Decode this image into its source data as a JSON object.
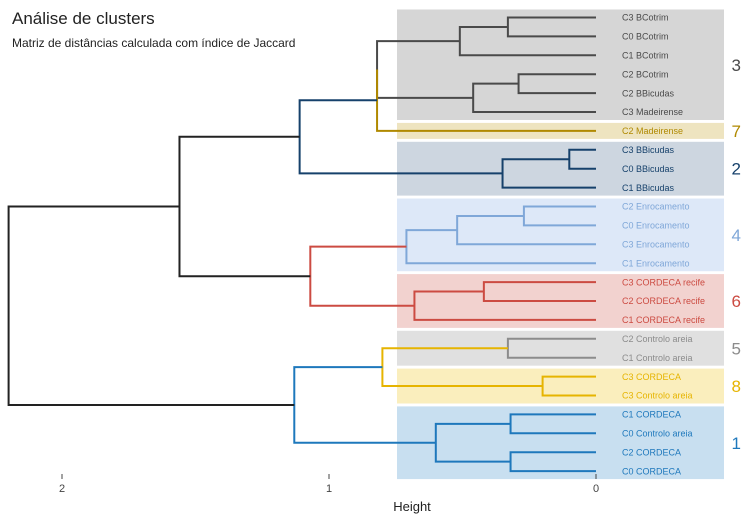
{
  "chart_data": {
    "type": "dendrogram",
    "title": "Análise de clusters",
    "subtitle": "Matriz de distâncias calculada com índice de Jaccard",
    "xlabel": "Height",
    "x_ticks": [
      {
        "value": 2,
        "label": "2"
      },
      {
        "value": 1,
        "label": "1"
      },
      {
        "value": 0,
        "label": "0"
      }
    ],
    "xlim": [
      2.22,
      -0.49
    ],
    "leaves": [
      "C3 BCotrim",
      "C0 BCotrim",
      "C1 BCotrim",
      "C2 BCotrim",
      "C2 BBicudas",
      "C3 Madeirense",
      "C2 Madeirense",
      "C3 BBicudas",
      "C0 BBicudas",
      "C1 BBicudas",
      "C2 Enrocamento",
      "C0 Enrocamento",
      "C3 Enrocamento",
      "C1 Enrocamento",
      "C3 CORDECA recife",
      "C2 CORDECA recife",
      "C1 CORDECA recife",
      "C2 Controlo areia",
      "C1 Controlo areia",
      "C3 CORDECA",
      "C3 Controlo areia",
      "C1 CORDECA",
      "C0 Controlo areia",
      "C2 CORDECA",
      "C0 CORDECA"
    ],
    "clusters": [
      {
        "label": "3",
        "color": "#4a4a4a",
        "bg": "#d6d6d6",
        "first": 0,
        "last": 5
      },
      {
        "label": "7",
        "color": "#b08900",
        "bg": "#eee4c0",
        "first": 6,
        "last": 6
      },
      {
        "label": "2",
        "color": "#16416b",
        "bg": "#cdd6e0",
        "first": 7,
        "last": 9
      },
      {
        "label": "4",
        "color": "#7fa7d8",
        "bg": "#dde8f8",
        "first": 10,
        "last": 13
      },
      {
        "label": "6",
        "color": "#cc4b42",
        "bg": "#f2d2cf",
        "first": 14,
        "last": 16
      },
      {
        "label": "5",
        "color": "#8c8c8c",
        "bg": "#e0e0e0",
        "first": 17,
        "last": 18
      },
      {
        "label": "8",
        "color": "#e6b400",
        "bg": "#faeebd",
        "first": 19,
        "last": 20
      },
      {
        "label": "1",
        "color": "#1e78bc",
        "bg": "#c8dff0",
        "first": 21,
        "last": 24
      }
    ],
    "merges": [
      {
        "a": 0,
        "b": 1,
        "height": 0.33,
        "color": "#4a4a4a"
      },
      {
        "a": "m0",
        "b": 2,
        "height": 0.51,
        "color": "#4a4a4a"
      },
      {
        "a": 3,
        "b": 4,
        "height": 0.29,
        "color": "#4a4a4a"
      },
      {
        "a": "m2",
        "b": 5,
        "height": 0.46,
        "color": "#4a4a4a"
      },
      {
        "a": "m1",
        "b": "m3",
        "height": 0.82,
        "color": "#4a4a4a"
      },
      {
        "a": "m4",
        "b": 6,
        "height": 0.82,
        "color": "#b08900"
      },
      {
        "a": 7,
        "b": 8,
        "height": 0.1,
        "color": "#16416b"
      },
      {
        "a": "m6",
        "b": 9,
        "height": 0.35,
        "color": "#16416b"
      },
      {
        "a": "m5",
        "b": "m7",
        "height": 1.11,
        "color": "#16416b"
      },
      {
        "a": 10,
        "b": 11,
        "height": 0.27,
        "color": "#7fa7d8"
      },
      {
        "a": "m9",
        "b": 12,
        "height": 0.52,
        "color": "#7fa7d8"
      },
      {
        "a": "m10",
        "b": 13,
        "height": 0.71,
        "color": "#7fa7d8"
      },
      {
        "a": 14,
        "b": 15,
        "height": 0.42,
        "color": "#cc4b42"
      },
      {
        "a": "m12",
        "b": 16,
        "height": 0.68,
        "color": "#cc4b42"
      },
      {
        "a": "m11",
        "b": "m13",
        "height": 1.07,
        "color": "#cc4b42"
      },
      {
        "a": "m8",
        "b": "m14",
        "height": 1.56,
        "color": "#222222"
      },
      {
        "a": 17,
        "b": 18,
        "height": 0.33,
        "color": "#8c8c8c"
      },
      {
        "a": 19,
        "b": 20,
        "height": 0.2,
        "color": "#e6b400"
      },
      {
        "a": "m16",
        "b": "m17",
        "height": 0.8,
        "color": "#e6b400"
      },
      {
        "a": 21,
        "b": 22,
        "height": 0.32,
        "color": "#1e78bc"
      },
      {
        "a": 23,
        "b": 24,
        "height": 0.32,
        "color": "#1e78bc"
      },
      {
        "a": "m19",
        "b": "m20",
        "height": 0.6,
        "color": "#1e78bc"
      },
      {
        "a": "m18",
        "b": "m21",
        "height": 1.13,
        "color": "#1e78bc"
      },
      {
        "a": "m15",
        "b": "m22",
        "height": 2.2,
        "color": "#222222"
      }
    ]
  }
}
